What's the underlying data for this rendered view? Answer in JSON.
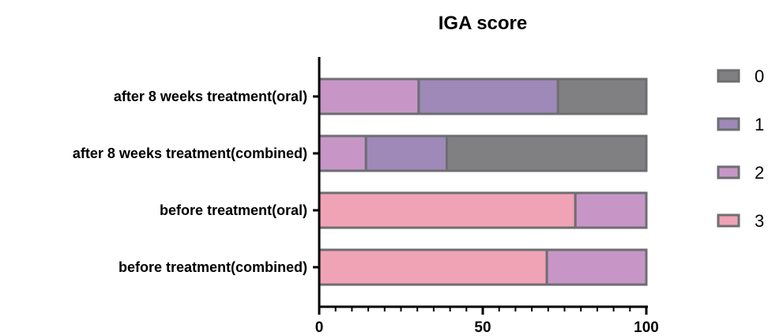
{
  "chart_data": {
    "type": "bar",
    "orientation": "horizontal",
    "stacked": true,
    "title": "IGA score",
    "xlabel": "",
    "ylabel": "",
    "xlim": [
      0,
      100
    ],
    "xticks": [
      "0",
      "50",
      "100"
    ],
    "categories": [
      "after 8 weeks treatment(oral)",
      "after 8 weeks treatment(combined)",
      "before treatment(oral)",
      "before treatment(combined)"
    ],
    "series": [
      {
        "name": "3",
        "color": "#f0a3b5",
        "values": [
          0,
          0,
          78.3,
          69.6
        ]
      },
      {
        "name": "2",
        "color": "#c796c7",
        "values": [
          30.4,
          14.3,
          21.7,
          30.4
        ]
      },
      {
        "name": "1",
        "color": "#9e89b8",
        "values": [
          42.6,
          24.7,
          0,
          0
        ]
      },
      {
        "name": "0",
        "color": "#808083",
        "values": [
          27.0,
          61.0,
          0,
          0
        ]
      }
    ],
    "legend_order": [
      "0",
      "1",
      "2",
      "3"
    ],
    "legend_position": "right",
    "grid": false
  }
}
